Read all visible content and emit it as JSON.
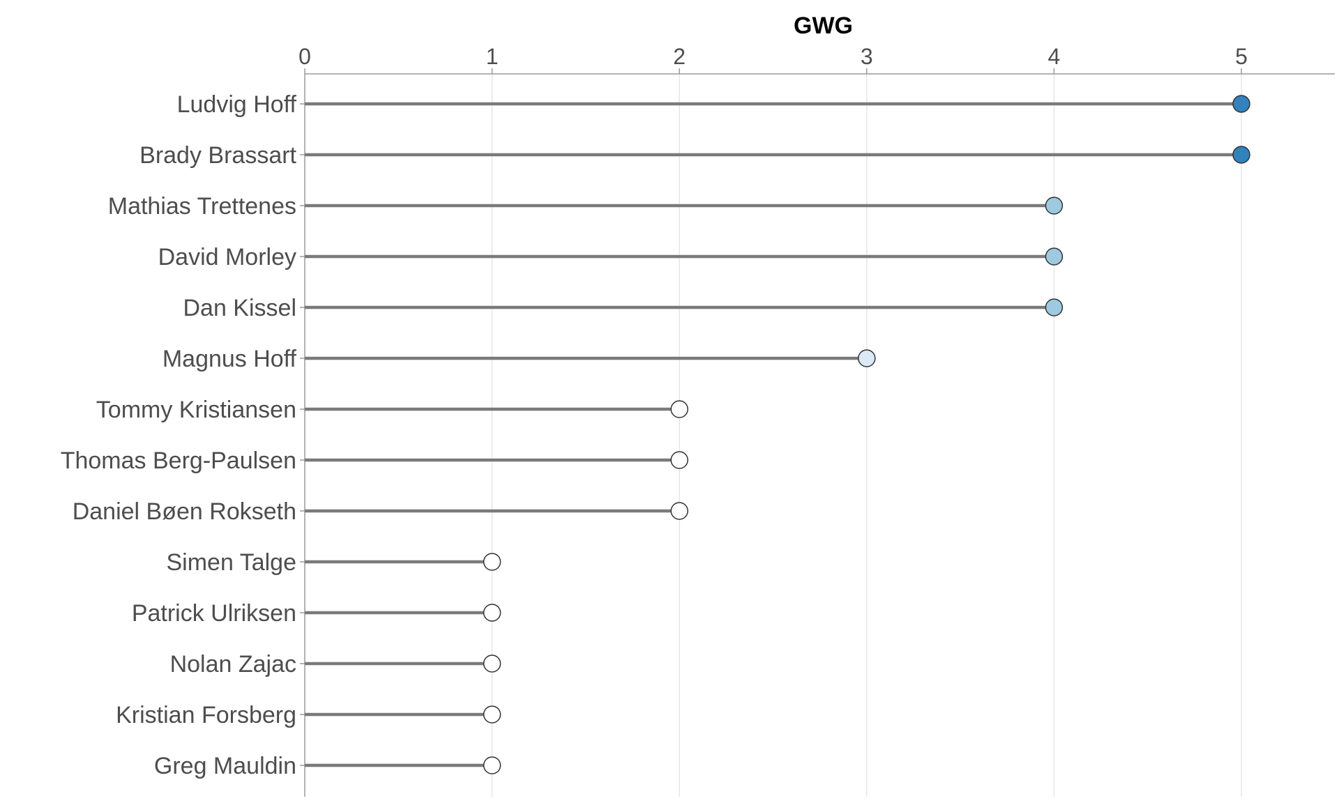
{
  "chart_data": {
    "type": "lollipop",
    "xlabel": "GWG",
    "xlim": [
      0,
      5.5
    ],
    "xticks": [
      0,
      1,
      2,
      3,
      4,
      5
    ],
    "x_axis_position": "top",
    "grid": "vertical",
    "categories": [
      "Ludvig Hoff",
      "Brady Brassart",
      "Mathias Trettenes",
      "David Morley",
      "Dan Kissel",
      "Magnus Hoff",
      "Tommy Kristiansen",
      "Thomas Berg-Paulsen",
      "Daniel Bøen Rokseth",
      "Simen Talge",
      "Patrick Ulriksen",
      "Nolan Zajac",
      "Kristian Forsberg",
      "Greg Mauldin"
    ],
    "values": [
      5,
      5,
      4,
      4,
      4,
      3,
      2,
      2,
      2,
      1,
      1,
      1,
      1,
      1
    ],
    "colors": {
      "stem": "#7a7a7a",
      "grid": "#e6e6e6",
      "axis": "#9a9a9a",
      "point_stroke": "#333333",
      "scale": {
        "1": "#ffffff",
        "2": "#ffffff",
        "3": "#dbe9f6",
        "4": "#9ecae1",
        "5": "#3182bd"
      }
    }
  }
}
